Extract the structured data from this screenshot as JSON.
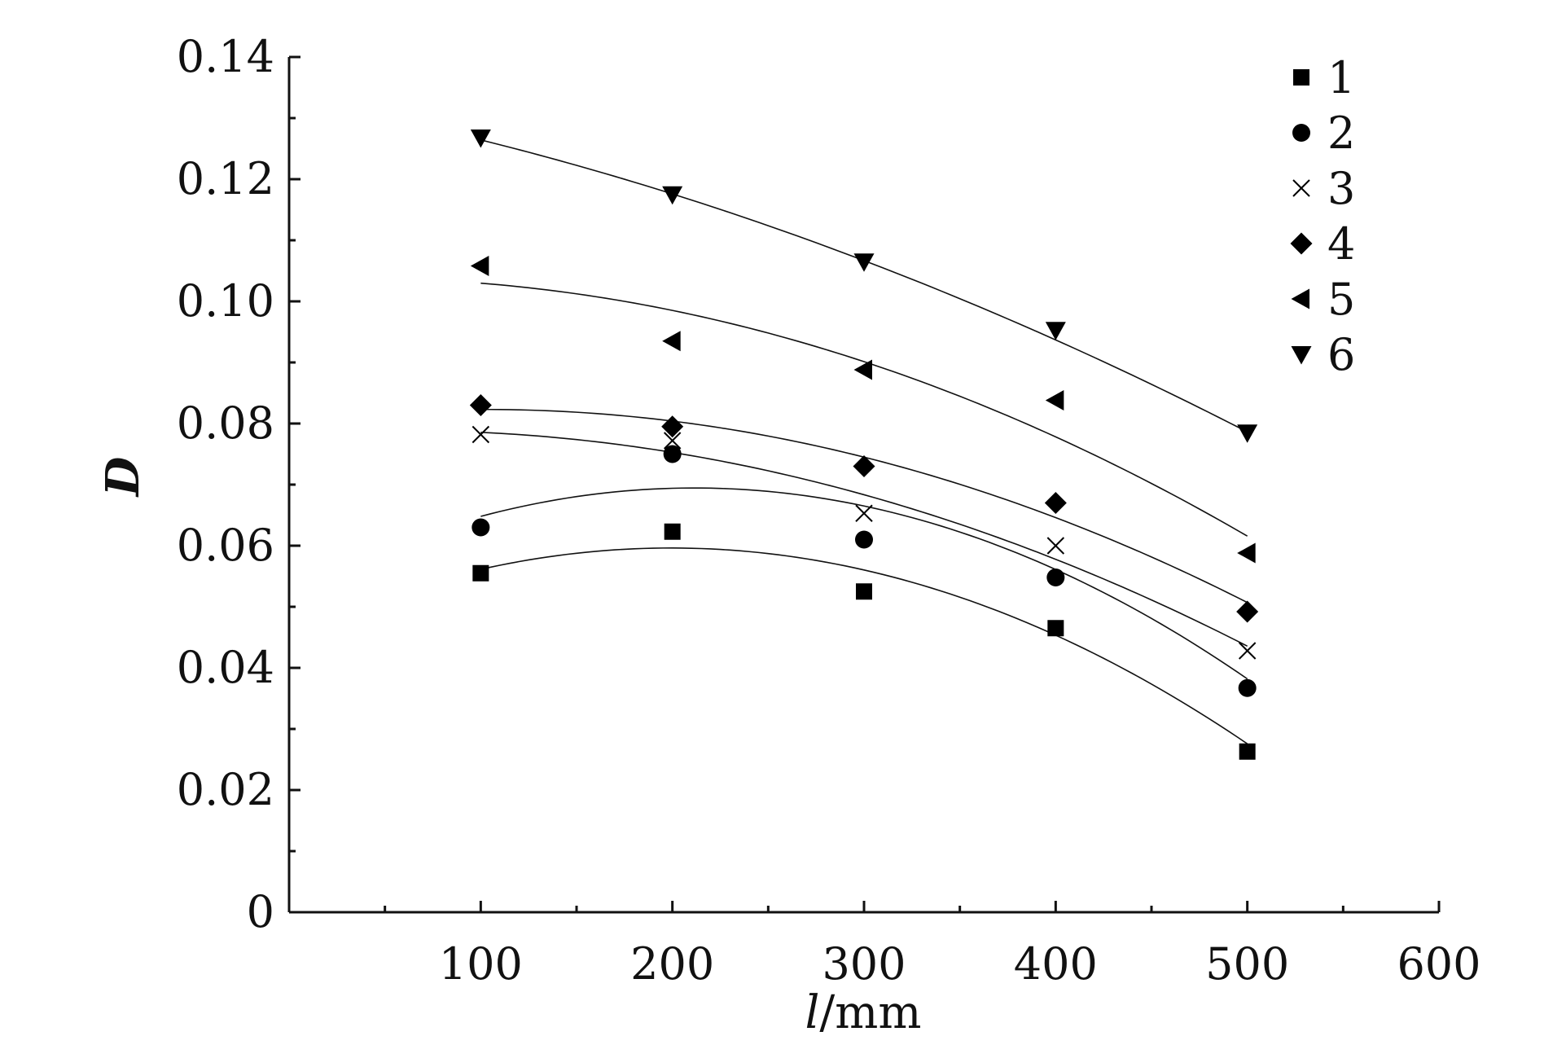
{
  "chart_data": {
    "type": "scatter",
    "xlabel_italic": "l",
    "xlabel_unit": "/mm",
    "ylabel": "D",
    "xlim": [
      0,
      600
    ],
    "ylim": [
      0,
      0.14
    ],
    "x_ticks": [
      100,
      200,
      300,
      400,
      500,
      600
    ],
    "x_minor_ticks": [
      50,
      150,
      250,
      350,
      450,
      550
    ],
    "y_ticks": [
      0,
      0.02,
      0.04,
      0.06,
      0.08,
      0.1,
      0.12,
      0.14
    ],
    "y_tick_labels": [
      "0",
      "0.02",
      "0.04",
      "0.06",
      "0.08",
      "0.10",
      "0.12",
      "0.14"
    ],
    "y_minor_ticks": [
      0.01,
      0.03,
      0.05,
      0.07,
      0.09,
      0.11,
      0.13
    ],
    "x": [
      100,
      200,
      300,
      400,
      500
    ],
    "grid": false,
    "legend_position": "top-right",
    "series": [
      {
        "name": "1",
        "marker": "square",
        "values": [
          0.0555,
          0.0623,
          0.0525,
          0.0465,
          0.0263
        ],
        "fit": [
          0.0562,
          0.0595,
          0.056,
          0.0455,
          0.0275
        ]
      },
      {
        "name": "2",
        "marker": "circle",
        "values": [
          0.063,
          0.075,
          0.061,
          0.0548,
          0.0367
        ],
        "fit": [
          0.065,
          0.069,
          0.0665,
          0.0565,
          0.038
        ]
      },
      {
        "name": "3",
        "marker": "x",
        "values": [
          0.0782,
          0.0772,
          0.0653,
          0.06,
          0.0428
        ],
        "fit": [
          0.0785,
          0.0755,
          0.068,
          0.058,
          0.0435
        ]
      },
      {
        "name": "4",
        "marker": "diamond",
        "values": [
          0.083,
          0.0795,
          0.073,
          0.067,
          0.0492
        ],
        "fit": [
          0.0825,
          0.08,
          0.0745,
          0.065,
          0.0505
        ]
      },
      {
        "name": "5",
        "marker": "triangle-left",
        "values": [
          0.1058,
          0.0935,
          0.0888,
          0.0838,
          0.0588
        ],
        "fit": [
          0.103,
          0.0985,
          0.09,
          0.078,
          0.0615
        ]
      },
      {
        "name": "6",
        "marker": "triangle-down",
        "values": [
          0.1268,
          0.1175,
          0.1065,
          0.0953,
          0.0785
        ],
        "fit": [
          0.1265,
          0.1175,
          0.1065,
          0.094,
          0.0785
        ]
      }
    ]
  }
}
